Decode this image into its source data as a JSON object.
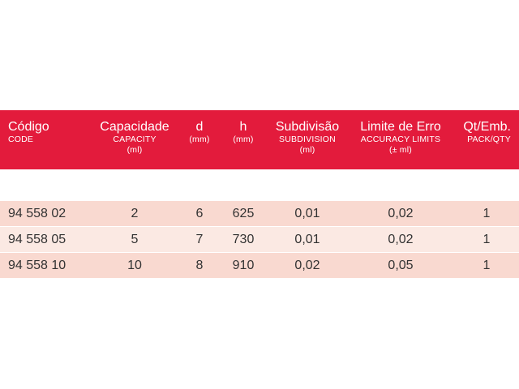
{
  "table": {
    "headers": [
      {
        "main": "Código",
        "sub": [
          "CODE"
        ]
      },
      {
        "main": "Capacidade",
        "sub": [
          "CAPACITY",
          "(ml)"
        ]
      },
      {
        "main": "d",
        "sub": [
          "(mm)"
        ]
      },
      {
        "main": "h",
        "sub": [
          "(mm)"
        ]
      },
      {
        "main": "Subdivisão",
        "sub": [
          "SUBDIVISION",
          "(ml)"
        ]
      },
      {
        "main": "Limite de Erro",
        "sub": [
          "ACCURACY LIMITS",
          "(± ml)"
        ]
      },
      {
        "main": "Qt/Emb.",
        "sub": [
          "PACK/QTY"
        ]
      }
    ],
    "rows": [
      [
        "94 558 02",
        "2",
        "6",
        "625",
        "0,01",
        "0,02",
        "1"
      ],
      [
        "94 558 05",
        "5",
        "7",
        "730",
        "0,01",
        "0,02",
        "1"
      ],
      [
        "94 558 10",
        "10",
        "8",
        "910",
        "0,02",
        "0,05",
        "1"
      ]
    ],
    "colors": {
      "header_bg": "#e31b3c",
      "row_dark": "#f9d9d0",
      "row_light": "#fbe9e3",
      "text": "#333333"
    }
  }
}
